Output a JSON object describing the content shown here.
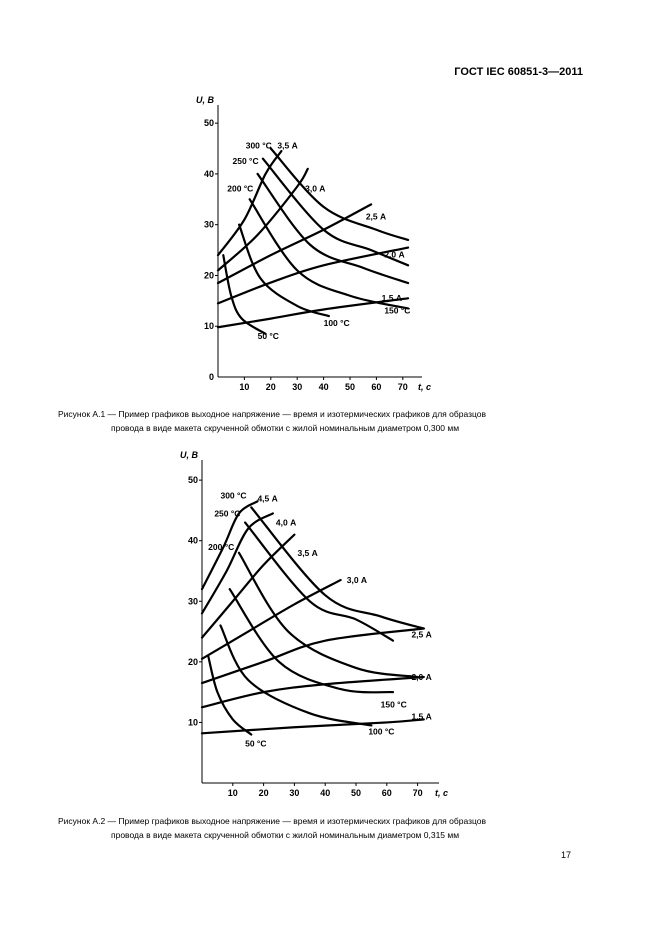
{
  "header": {
    "standard": "ГОСТ IEC 60851-3—2011"
  },
  "page_number": "17",
  "figures": [
    {
      "caption_line1": "Рисунок  А.1 — Пример графиков выходное напряжение — время и изотермических графиков для образцов",
      "caption_line2": "провода в виде макета скрученной обмотки с жилой номинальным диаметром 0,300 мм"
    },
    {
      "caption_line1": "Рисунок  А.2 — Пример графиков выходное напряжение — время и изотермических графиков для образцов",
      "caption_line2": "провода в виде макета скрученной обмотки с жилой номинальным диаметром 0,315 мм"
    }
  ],
  "chart_data": [
    {
      "type": "line",
      "ylabel": "U, В",
      "xlabel": "t, с",
      "xlim": [
        0,
        75
      ],
      "ylim": [
        0,
        52
      ],
      "xticks": [
        10,
        20,
        30,
        40,
        50,
        60,
        70
      ],
      "yticks": [
        10,
        20,
        30,
        40,
        50
      ],
      "origin_label": "0",
      "series": [
        {
          "name": "1,5 А",
          "points": [
            [
              0,
              9.8
            ],
            [
              20,
              11.5
            ],
            [
              40,
              13.3
            ],
            [
              72,
              15.5
            ]
          ]
        },
        {
          "name": "2,0 А",
          "points": [
            [
              0,
              14.5
            ],
            [
              20,
              18.6
            ],
            [
              40,
              22.0
            ],
            [
              72,
              25.5
            ]
          ]
        },
        {
          "name": "2,5 А",
          "points": [
            [
              0,
              18.5
            ],
            [
              20,
              24.0
            ],
            [
              40,
              29.0
            ],
            [
              58,
              34.0
            ]
          ]
        },
        {
          "name": "3,0 А",
          "points": [
            [
              0,
              21.0
            ],
            [
              15,
              28.0
            ],
            [
              30,
              37.5
            ],
            [
              34,
              41.0
            ]
          ]
        },
        {
          "name": "3,5 А",
          "points": [
            [
              0,
              24.0
            ],
            [
              10,
              31.0
            ],
            [
              18,
              40.0
            ],
            [
              24,
              44.5
            ]
          ]
        },
        {
          "name": "50 °С",
          "points": [
            [
              2,
              24.0
            ],
            [
              5,
              16.0
            ],
            [
              9,
              11.5
            ],
            [
              18,
              8.5
            ]
          ]
        },
        {
          "name": "100 °С",
          "points": [
            [
              8,
              30.0
            ],
            [
              16,
              19.5
            ],
            [
              30,
              14.0
            ],
            [
              42,
              12.0
            ]
          ]
        },
        {
          "name": "150 °С",
          "points": [
            [
              12,
              35.0
            ],
            [
              30,
              21.0
            ],
            [
              50,
              16.0
            ],
            [
              72,
              13.5
            ]
          ]
        },
        {
          "name": "200 °С",
          "points": [
            [
              15,
              40.0
            ],
            [
              35,
              26.0
            ],
            [
              55,
              21.5
            ],
            [
              72,
              18.5
            ]
          ]
        },
        {
          "name": "250 °С",
          "points": [
            [
              17,
              43.0
            ],
            [
              40,
              29.0
            ],
            [
              58,
              25.0
            ],
            [
              72,
              22.0
            ]
          ]
        },
        {
          "name": "300 °С",
          "points": [
            [
              20,
              45.0
            ],
            [
              40,
              33.5
            ],
            [
              60,
              29.0
            ],
            [
              72,
              27.0
            ]
          ]
        }
      ],
      "annotations": [
        {
          "text": "300 °С",
          "x": 10.5,
          "y": 45.0
        },
        {
          "text": "3,5 А",
          "x": 22.5,
          "y": 45.0
        },
        {
          "text": "250 °С",
          "x": 5.5,
          "y": 42.0
        },
        {
          "text": "200 °С",
          "x": 3.5,
          "y": 36.5
        },
        {
          "text": "3,0 А",
          "x": 33.0,
          "y": 36.5
        },
        {
          "text": "2,5 А",
          "x": 56.0,
          "y": 31.0
        },
        {
          "text": "2,0 А",
          "x": 63.0,
          "y": 23.5
        },
        {
          "text": "1,5 А",
          "x": 62.0,
          "y": 15.0
        },
        {
          "text": "150 °С",
          "x": 63.0,
          "y": 12.5
        },
        {
          "text": "100 °С",
          "x": 40.0,
          "y": 10.0
        },
        {
          "text": "50 °С",
          "x": 15.0,
          "y": 7.5
        }
      ]
    },
    {
      "type": "line",
      "ylabel": "U, В",
      "xlabel": "t, с",
      "xlim": [
        0,
        75
      ],
      "ylim": [
        0,
        52
      ],
      "xticks": [
        10,
        20,
        30,
        40,
        50,
        60,
        70
      ],
      "yticks": [
        10,
        20,
        30,
        40,
        50
      ],
      "origin_label": "",
      "series": [
        {
          "name": "1,5 А",
          "points": [
            [
              0,
              8.2
            ],
            [
              30,
              9.2
            ],
            [
              60,
              10.0
            ],
            [
              72,
              10.5
            ]
          ]
        },
        {
          "name": "2,0 А",
          "points": [
            [
              0,
              12.5
            ],
            [
              20,
              15.0
            ],
            [
              40,
              16.3
            ],
            [
              72,
              17.5
            ]
          ]
        },
        {
          "name": "2,5 А",
          "points": [
            [
              0,
              16.5
            ],
            [
              20,
              20.0
            ],
            [
              40,
              23.5
            ],
            [
              72,
              25.5
            ]
          ]
        },
        {
          "name": "3,0 А",
          "points": [
            [
              0,
              20.5
            ],
            [
              15,
              25.0
            ],
            [
              30,
              29.5
            ],
            [
              45,
              33.5
            ]
          ]
        },
        {
          "name": "3,5 А",
          "points": [
            [
              0,
              24.0
            ],
            [
              10,
              30.0
            ],
            [
              20,
              36.0
            ],
            [
              30,
              41.0
            ]
          ]
        },
        {
          "name": "4,0 А",
          "points": [
            [
              0,
              28.0
            ],
            [
              8,
              35.0
            ],
            [
              15,
              42.0
            ],
            [
              23,
              44.5
            ]
          ]
        },
        {
          "name": "4,5 А",
          "points": [
            [
              0,
              32.0
            ],
            [
              7,
              39.0
            ],
            [
              12,
              44.5
            ],
            [
              18,
              46.5
            ]
          ]
        },
        {
          "name": "50 °С",
          "points": [
            [
              2,
              21.0
            ],
            [
              5,
              15.0
            ],
            [
              10,
              10.5
            ],
            [
              16,
              8.0
            ]
          ]
        },
        {
          "name": "100 °С",
          "points": [
            [
              6,
              26.0
            ],
            [
              15,
              17.0
            ],
            [
              35,
              11.5
            ],
            [
              55,
              9.5
            ]
          ]
        },
        {
          "name": "150 °С",
          "points": [
            [
              9,
              32.0
            ],
            [
              25,
              20.0
            ],
            [
              45,
              15.5
            ],
            [
              62,
              15.0
            ]
          ]
        },
        {
          "name": "200 °С",
          "points": [
            [
              12,
              38.0
            ],
            [
              28,
              25.0
            ],
            [
              50,
              19.0
            ],
            [
              70,
              17.5
            ]
          ]
        },
        {
          "name": "250 °С",
          "points": [
            [
              14,
              43.0
            ],
            [
              35,
              30.0
            ],
            [
              50,
              27.0
            ],
            [
              62,
              23.5
            ]
          ]
        },
        {
          "name": "300 °С",
          "points": [
            [
              16,
              45.5
            ],
            [
              40,
              31.0
            ],
            [
              58,
              27.5
            ],
            [
              72,
              25.5
            ]
          ]
        }
      ],
      "annotations": [
        {
          "text": "300 °С",
          "x": 6.0,
          "y": 47.0
        },
        {
          "text": "4,5 А",
          "x": 18.0,
          "y": 46.5
        },
        {
          "text": "250 °С",
          "x": 4.0,
          "y": 44.0
        },
        {
          "text": "4,0 А",
          "x": 24.0,
          "y": 42.5
        },
        {
          "text": "200 °С",
          "x": 2.0,
          "y": 38.5
        },
        {
          "text": "3,5 А",
          "x": 31.0,
          "y": 37.5
        },
        {
          "text": "3,0 А",
          "x": 47.0,
          "y": 33.0
        },
        {
          "text": "2,5 А",
          "x": 68.0,
          "y": 24.0
        },
        {
          "text": "2,0 А",
          "x": 68.0,
          "y": 17.0
        },
        {
          "text": "150 °С",
          "x": 58.0,
          "y": 12.5
        },
        {
          "text": "1,5 А",
          "x": 68.0,
          "y": 10.5
        },
        {
          "text": "100 °С",
          "x": 54.0,
          "y": 8.0
        },
        {
          "text": "50 °С",
          "x": 14.0,
          "y": 6.0
        }
      ]
    }
  ]
}
